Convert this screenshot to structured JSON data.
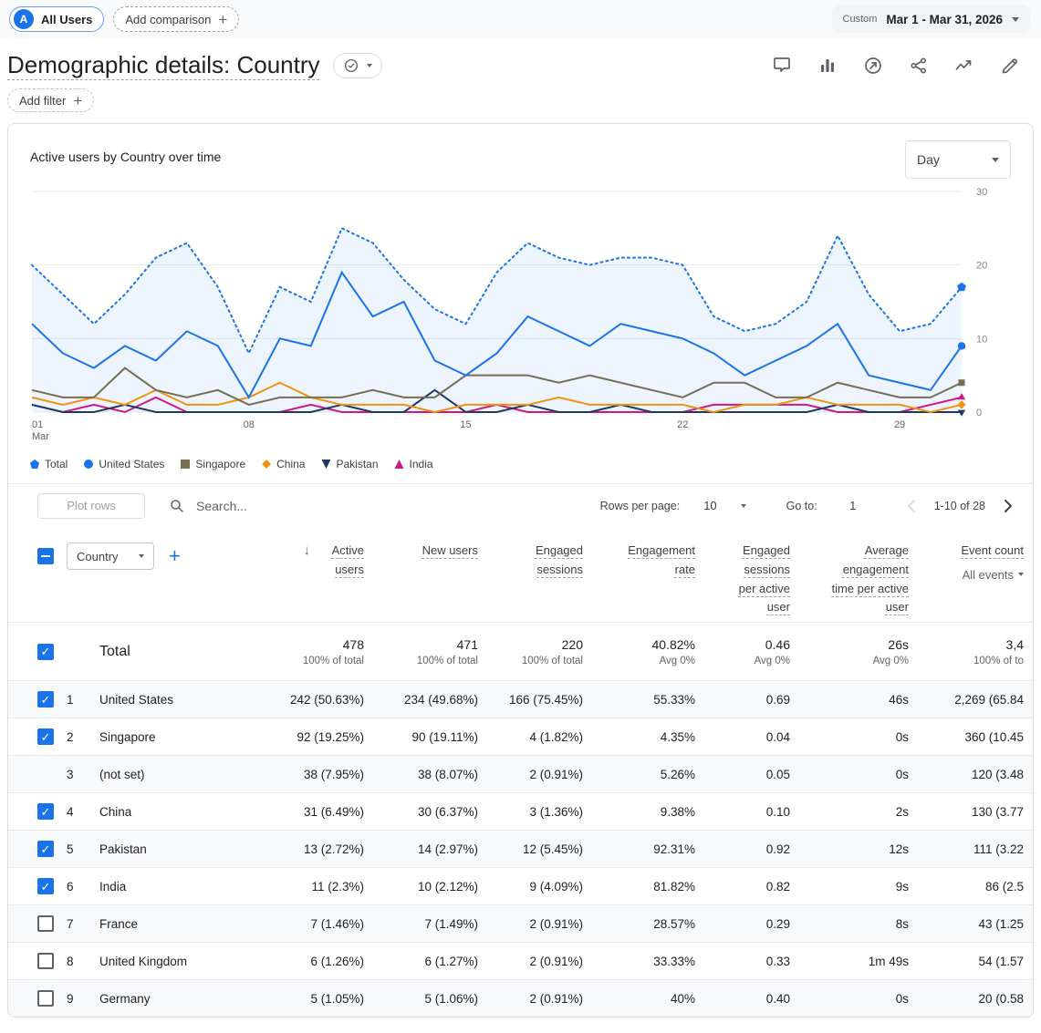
{
  "colors": {
    "accent": "#1a73e8",
    "fill": "rgba(26,115,232,0.08)"
  },
  "top_bar": {
    "all_users": "All Users",
    "avatar_letter": "A",
    "add_comparison": "Add comparison",
    "date_label": "Custom",
    "date_value": "Mar 1 - Mar 31, 2026"
  },
  "header": {
    "title": "Demographic details: Country",
    "action_icons": [
      "feedback",
      "chart-columns",
      "target",
      "share",
      "insights",
      "edit"
    ]
  },
  "filters": {
    "add_filter": "Add filter"
  },
  "chart_card": {
    "title": "Active users by Country over time",
    "granularity": "Day"
  },
  "chart_data": {
    "type": "line",
    "title": "Active users by Country over time",
    "x_unit": "day",
    "x_range": [
      "Mar 1",
      "Mar 31"
    ],
    "x_ticks": [
      {
        "index": 0,
        "label": "01",
        "sub": "Mar"
      },
      {
        "index": 7,
        "label": "08"
      },
      {
        "index": 14,
        "label": "15"
      },
      {
        "index": 21,
        "label": "22"
      },
      {
        "index": 28,
        "label": "29"
      }
    ],
    "ylim": [
      0,
      30
    ],
    "yticks": [
      0,
      10,
      20,
      30
    ],
    "legend_position": "bottom",
    "grid": true,
    "series": [
      {
        "name": "Total",
        "color": "#1a73e8",
        "style": "dotted",
        "marker": "pentagon",
        "fill": true,
        "values": [
          20,
          16,
          12,
          16,
          21,
          23,
          17,
          8,
          17,
          15,
          25,
          23,
          18,
          14,
          12,
          19,
          23,
          21,
          20,
          21,
          21,
          20,
          13,
          11,
          12,
          15,
          24,
          16,
          11,
          12,
          17
        ]
      },
      {
        "name": "United States",
        "color": "#1a73e8",
        "style": "solid",
        "marker": "circle",
        "values": [
          12,
          8,
          6,
          9,
          7,
          11,
          9,
          2,
          10,
          9,
          19,
          13,
          15,
          7,
          5,
          8,
          13,
          11,
          9,
          12,
          11,
          10,
          8,
          5,
          7,
          9,
          12,
          5,
          4,
          3,
          9
        ]
      },
      {
        "name": "Singapore",
        "color": "#766d53",
        "style": "solid",
        "marker": "square",
        "values": [
          3,
          2,
          2,
          6,
          3,
          2,
          3,
          1,
          2,
          2,
          2,
          3,
          2,
          2,
          5,
          5,
          5,
          4,
          5,
          4,
          3,
          2,
          4,
          4,
          2,
          2,
          4,
          3,
          2,
          2,
          4
        ]
      },
      {
        "name": "China",
        "color": "#f0930e",
        "style": "solid",
        "marker": "diamond",
        "values": [
          2,
          1,
          2,
          1,
          3,
          1,
          1,
          2,
          4,
          2,
          1,
          1,
          1,
          0,
          1,
          1,
          1,
          2,
          1,
          1,
          1,
          1,
          0,
          1,
          1,
          2,
          1,
          1,
          1,
          0,
          1
        ]
      },
      {
        "name": "Pakistan",
        "color": "#1e3a5f",
        "style": "solid",
        "marker": "triangle-down",
        "values": [
          1,
          0,
          0,
          1,
          0,
          0,
          0,
          0,
          0,
          0,
          1,
          0,
          0,
          3,
          0,
          0,
          1,
          0,
          0,
          1,
          0,
          0,
          0,
          0,
          0,
          0,
          1,
          0,
          0,
          0,
          0
        ]
      },
      {
        "name": "India",
        "color": "#d01884",
        "style": "solid",
        "marker": "triangle-up",
        "values": [
          1,
          0,
          1,
          0,
          2,
          0,
          0,
          0,
          0,
          1,
          0,
          0,
          0,
          0,
          0,
          1,
          0,
          0,
          0,
          0,
          0,
          0,
          1,
          1,
          1,
          1,
          0,
          0,
          0,
          1,
          2
        ]
      }
    ]
  },
  "table": {
    "toolbar": {
      "plot_rows": "Plot rows",
      "search_placeholder": "Search...",
      "rows_per_page_label": "Rows per page:",
      "rows_per_page_value": "10",
      "go_to_label": "Go to:",
      "go_to_value": "1",
      "range_text": "1-10 of 28"
    },
    "dimension": "Country",
    "columns": [
      {
        "label": "Active users",
        "sorted": "desc"
      },
      {
        "label": "New users"
      },
      {
        "label": "Engaged sessions"
      },
      {
        "label": "Engagement rate"
      },
      {
        "label": "Engaged sessions per active user"
      },
      {
        "label": "Average engagement time per active user"
      },
      {
        "label": "Event count",
        "sub": "All events"
      }
    ],
    "total": {
      "label": "Total",
      "checkbox": "checked",
      "values": [
        "478",
        "471",
        "220",
        "40.82%",
        "0.46",
        "26s",
        "3,4"
      ],
      "subs": [
        "100% of total",
        "100% of total",
        "100% of total",
        "Avg 0%",
        "Avg 0%",
        "Avg 0%",
        "100% of to"
      ]
    },
    "rows": [
      {
        "index": 1,
        "name": "United States",
        "checkbox": "checked",
        "cells": [
          "242 (50.63%)",
          "234 (49.68%)",
          "166 (75.45%)",
          "55.33%",
          "0.69",
          "46s",
          "2,269 (65.84"
        ]
      },
      {
        "index": 2,
        "name": "Singapore",
        "checkbox": "checked",
        "cells": [
          "92 (19.25%)",
          "90 (19.11%)",
          "4 (1.82%)",
          "4.35%",
          "0.04",
          "0s",
          "360 (10.45"
        ]
      },
      {
        "index": 3,
        "name": "(not set)",
        "checkbox": "none",
        "cells": [
          "38 (7.95%)",
          "38 (8.07%)",
          "2 (0.91%)",
          "5.26%",
          "0.05",
          "0s",
          "120 (3.48"
        ]
      },
      {
        "index": 4,
        "name": "China",
        "checkbox": "checked",
        "cells": [
          "31 (6.49%)",
          "30 (6.37%)",
          "3 (1.36%)",
          "9.38%",
          "0.10",
          "2s",
          "130 (3.77"
        ]
      },
      {
        "index": 5,
        "name": "Pakistan",
        "checkbox": "checked",
        "cells": [
          "13 (2.72%)",
          "14 (2.97%)",
          "12 (5.45%)",
          "92.31%",
          "0.92",
          "12s",
          "111 (3.22"
        ]
      },
      {
        "index": 6,
        "name": "India",
        "checkbox": "checked",
        "cells": [
          "11 (2.3%)",
          "10 (2.12%)",
          "9 (4.09%)",
          "81.82%",
          "0.82",
          "9s",
          "86 (2.5"
        ]
      },
      {
        "index": 7,
        "name": "France",
        "checkbox": "unchecked",
        "cells": [
          "7 (1.46%)",
          "7 (1.49%)",
          "2 (0.91%)",
          "28.57%",
          "0.29",
          "8s",
          "43 (1.25"
        ]
      },
      {
        "index": 8,
        "name": "United Kingdom",
        "checkbox": "unchecked",
        "cells": [
          "6 (1.26%)",
          "6 (1.27%)",
          "2 (0.91%)",
          "33.33%",
          "0.33",
          "1m 49s",
          "54 (1.57"
        ]
      },
      {
        "index": 9,
        "name": "Germany",
        "checkbox": "unchecked",
        "cells": [
          "5 (1.05%)",
          "5 (1.06%)",
          "2 (0.91%)",
          "40%",
          "0.40",
          "0s",
          "20 (0.58"
        ]
      }
    ]
  }
}
